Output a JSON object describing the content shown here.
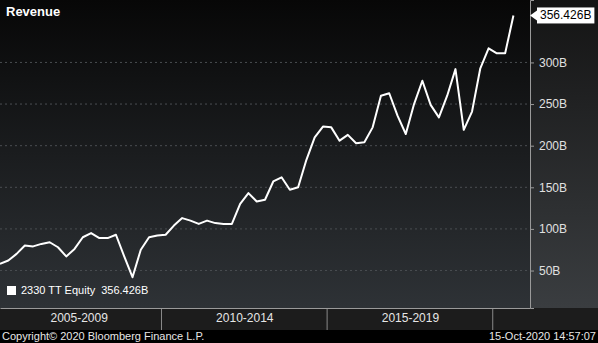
{
  "chart_data": {
    "type": "line",
    "title": "Revenue",
    "footer": "Copyright© 2020 Bloomberg Finance L.P.",
    "timestamp": "15-Oct-2020 14:57:07",
    "categories": [
      null,
      null,
      null,
      null,
      null,
      null,
      null,
      null,
      null,
      null,
      null,
      null,
      null,
      null,
      null,
      null,
      null,
      null,
      null,
      null,
      null,
      null,
      null,
      null,
      null,
      null,
      null,
      null,
      null,
      null,
      null,
      null,
      null,
      null,
      null,
      null,
      null,
      null,
      null,
      null,
      null,
      null,
      null,
      null,
      null,
      null,
      null,
      null,
      null,
      null,
      null,
      null,
      null,
      null,
      null,
      null,
      null,
      null,
      null,
      null,
      null,
      null,
      null
    ],
    "series": [
      {
        "name": "2330 TT Equity",
        "color": "#ffffff",
        "values": [
          58,
          62,
          70,
          80,
          79,
          82,
          84,
          78,
          67,
          76,
          90,
          95,
          89,
          89,
          93,
          67,
          42,
          75,
          90,
          92,
          93,
          104,
          113,
          110,
          106,
          110,
          107,
          106,
          106,
          130,
          143,
          133,
          135,
          157,
          162,
          147,
          150,
          183,
          210,
          223,
          222,
          206,
          213,
          203,
          204,
          222,
          260,
          263,
          236,
          214,
          250,
          278,
          249,
          234,
          260,
          292,
          219,
          241,
          293,
          317,
          311,
          311,
          356.426
        ],
        "value_labels": [
          null,
          null,
          null,
          null,
          null,
          null,
          null,
          null,
          null,
          null,
          null,
          null,
          null,
          null,
          null,
          null,
          null,
          null,
          null,
          null,
          null,
          null,
          null,
          null,
          null,
          null,
          null,
          null,
          null,
          null,
          null,
          null,
          null,
          null,
          null,
          null,
          null,
          null,
          null,
          null,
          null,
          null,
          null,
          null,
          null,
          null,
          null,
          null,
          null,
          null,
          null,
          null,
          null,
          null,
          null,
          null,
          null,
          null,
          null,
          null,
          null,
          null,
          "356.426B"
        ]
      }
    ],
    "data_labels": true,
    "xlim": [
      0,
      64
    ],
    "xticks": [
      {
        "value": 9.5,
        "label": "2005-2009"
      },
      {
        "value": 29.5,
        "label": "2010-2014"
      },
      {
        "value": 49.5,
        "label": "2015-2019"
      }
    ],
    "x_dividers": [
      19.5,
      39.5,
      59.5
    ],
    "ylim": [
      5,
      375
    ],
    "yticks": [
      {
        "value": 50,
        "label": "50B"
      },
      {
        "value": 100,
        "label": "100B"
      },
      {
        "value": 150,
        "label": "150B"
      },
      {
        "value": 200,
        "label": "200B"
      },
      {
        "value": 250,
        "label": "250B"
      },
      {
        "value": 300,
        "label": "300B"
      }
    ],
    "grid": true,
    "legend": "lower left"
  }
}
